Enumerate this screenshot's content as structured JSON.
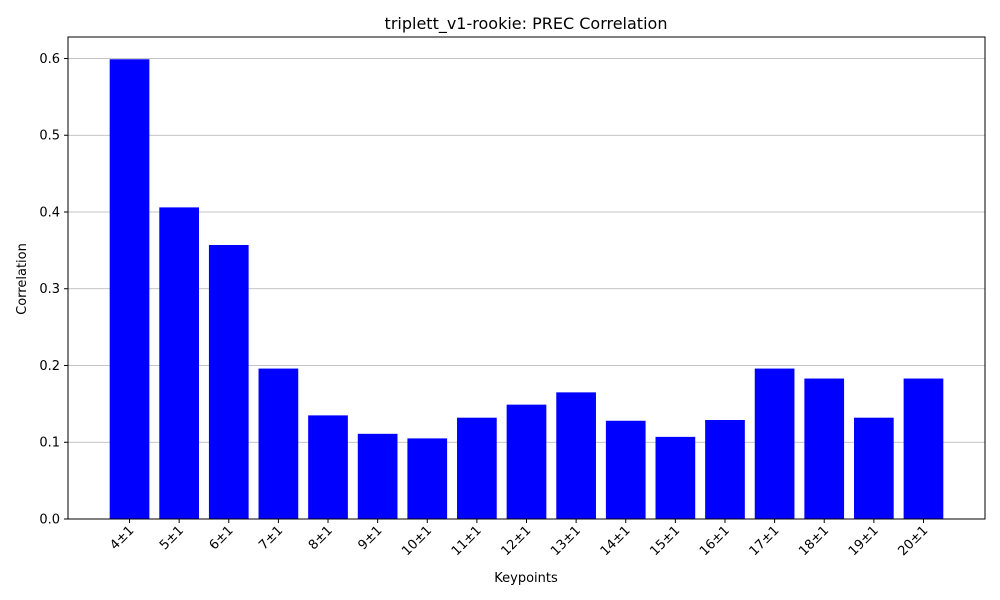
{
  "chart_data": {
    "type": "bar",
    "title": "triplett_v1-rookie: PREC Correlation",
    "xlabel": "Keypoints",
    "ylabel": "Correlation",
    "categories": [
      "4±1",
      "5±1",
      "6±1",
      "7±1",
      "8±1",
      "9±1",
      "10±1",
      "11±1",
      "12±1",
      "13±1",
      "14±1",
      "15±1",
      "16±1",
      "17±1",
      "18±1",
      "19±1",
      "20±1"
    ],
    "values": [
      0.599,
      0.406,
      0.357,
      0.196,
      0.135,
      0.111,
      0.105,
      0.132,
      0.149,
      0.165,
      0.128,
      0.107,
      0.129,
      0.196,
      0.183,
      0.132,
      0.183
    ],
    "ylim": [
      0,
      0.628
    ],
    "yticks": [
      0.0,
      0.1,
      0.2,
      0.3,
      0.4,
      0.5,
      0.6
    ],
    "ytick_labels": [
      "0.0",
      "0.1",
      "0.2",
      "0.3",
      "0.4",
      "0.5",
      "0.6"
    ],
    "grid": "y-axis horizontal gridlines",
    "bar_color": "#0000ff",
    "grid_color": "#b0b0b0",
    "legend": "none"
  }
}
